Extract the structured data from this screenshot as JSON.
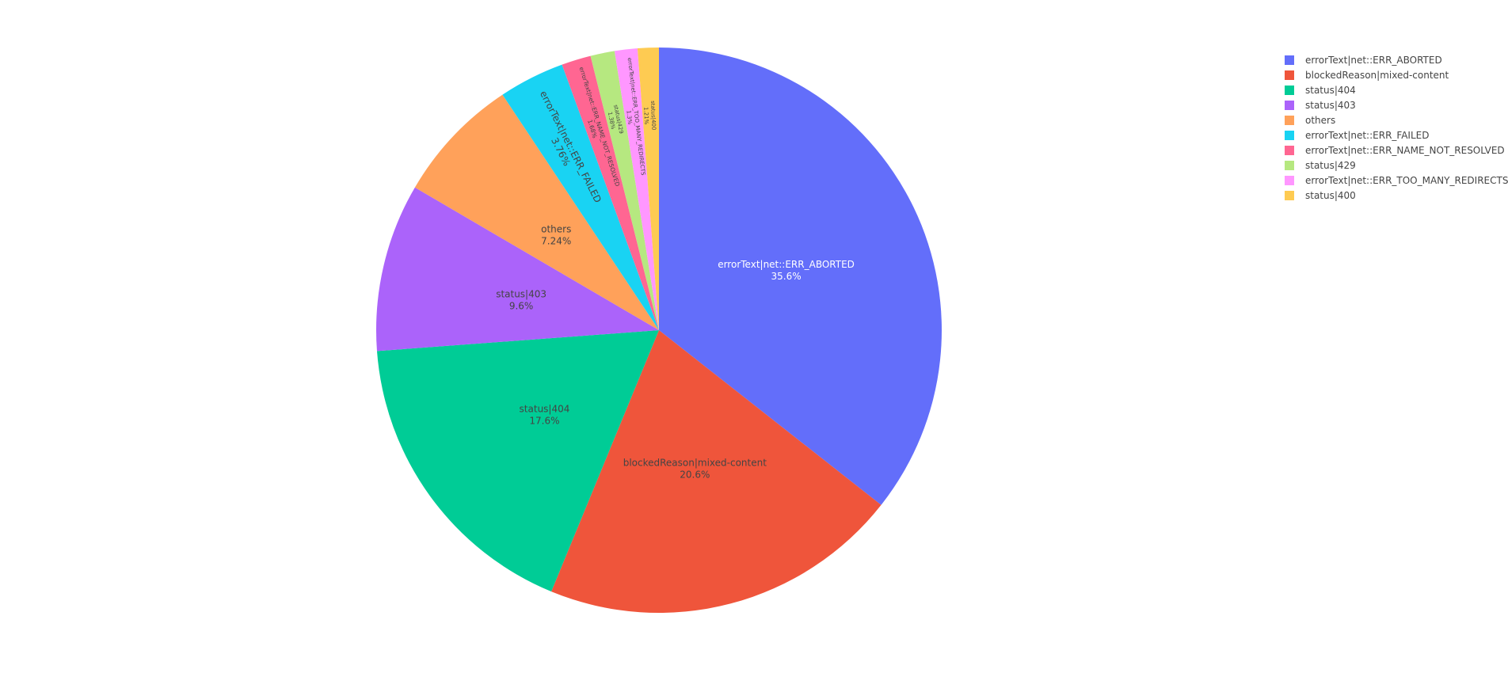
{
  "chart_data": {
    "type": "pie",
    "sort": "descending",
    "direction": "clockwise",
    "rotation": 0,
    "legend_placement": "top-right",
    "text_info": [
      "label",
      "percent"
    ],
    "slices": [
      {
        "label": "errorText|net::ERR_ABORTED",
        "value": 35.6,
        "percent_text": "35.6%",
        "color": "#636EFA",
        "text_color": "#ffffff"
      },
      {
        "label": "blockedReason|mixed-content",
        "value": 20.6,
        "percent_text": "20.6%",
        "color": "#EF553B",
        "text_color": "#444444"
      },
      {
        "label": "status|404",
        "value": 17.6,
        "percent_text": "17.6%",
        "color": "#00CC96",
        "text_color": "#444444"
      },
      {
        "label": "status|403",
        "value": 9.6,
        "percent_text": "9.6%",
        "color": "#AB63FA",
        "text_color": "#444444"
      },
      {
        "label": "others",
        "value": 7.24,
        "percent_text": "7.24%",
        "color": "#FFA15A",
        "text_color": "#444444"
      },
      {
        "label": "errorText|net::ERR_FAILED",
        "value": 3.76,
        "percent_text": "3.76%",
        "color": "#19D3F3",
        "text_color": "#444444"
      },
      {
        "label": "errorText|net::ERR_NAME_NOT_RESOLVED",
        "value": 1.68,
        "percent_text": "1.68%",
        "color": "#FF6692",
        "text_color": "#444444"
      },
      {
        "label": "status|429",
        "value": 1.38,
        "percent_text": "1.38%",
        "color": "#B6E880",
        "text_color": "#444444"
      },
      {
        "label": "errorText|net::ERR_TOO_MANY_REDIRECTS",
        "value": 1.3,
        "percent_text": "1.3%",
        "color": "#FF97FF",
        "text_color": "#444444"
      },
      {
        "label": "status|400",
        "value": 1.21,
        "percent_text": "1.21%",
        "color": "#FECB52",
        "text_color": "#444444"
      }
    ]
  }
}
